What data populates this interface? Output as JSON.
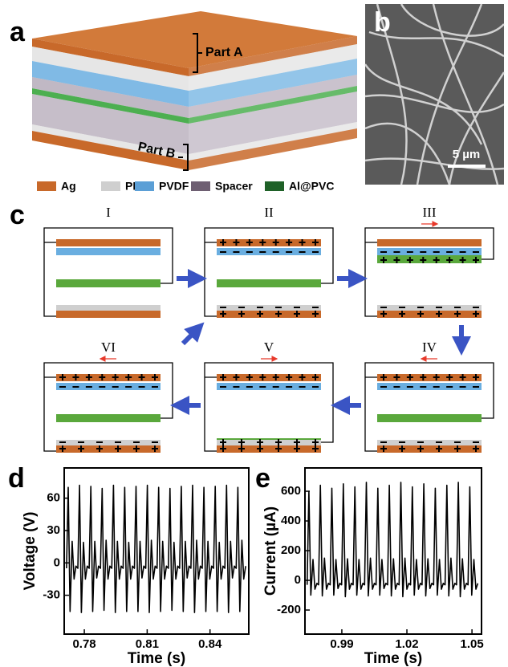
{
  "panel_labels": [
    "a",
    "b",
    "c",
    "d",
    "e"
  ],
  "schematic": {
    "part_a": "Part A",
    "part_b": "Part B",
    "legend": [
      {
        "name": "Ag",
        "color": "#c8692a"
      },
      {
        "name": "PE",
        "color": "#cfcfcf"
      },
      {
        "name": "PVDF",
        "color": "#5b9fd6"
      },
      {
        "name": "Spacer",
        "color": "#6e5f72"
      },
      {
        "name": "Al@PVC",
        "color": "#1f6128"
      }
    ]
  },
  "sem": {
    "scale_bar": "5 µm"
  },
  "stages": [
    "I",
    "II",
    "III",
    "IV",
    "V",
    "VI"
  ],
  "chart_data": [
    {
      "type": "line",
      "ylabel": "Voltage (V)",
      "xlabel": "Time (s)",
      "color": "#000000",
      "xlim": [
        0.7704,
        0.8585
      ],
      "xticks": [
        0.78,
        0.81,
        0.84
      ],
      "ylim": [
        -66,
        88
      ],
      "yticks": [
        -30,
        0,
        30,
        60
      ],
      "x": [
        0.7715,
        0.7723,
        0.7732,
        0.7742,
        0.7751,
        0.776,
        0.7769,
        0.7777,
        0.7786,
        0.7796,
        0.7805,
        0.7814,
        0.7823,
        0.7831,
        0.784,
        0.785,
        0.7859,
        0.7868,
        0.7877,
        0.7885,
        0.7894,
        0.7904,
        0.7913,
        0.7922,
        0.7931,
        0.7939,
        0.7948,
        0.7958,
        0.7967,
        0.7976,
        0.7985,
        0.7993,
        0.8002,
        0.8012,
        0.8021,
        0.803,
        0.8039,
        0.8047,
        0.8056,
        0.8066,
        0.8075,
        0.8084,
        0.8093,
        0.8101,
        0.811,
        0.812,
        0.8129,
        0.8138,
        0.8147,
        0.8155,
        0.8164,
        0.8174,
        0.8183,
        0.8192,
        0.8201,
        0.8209,
        0.8218,
        0.8228,
        0.8237,
        0.8246,
        0.8255,
        0.8263,
        0.8272,
        0.8282,
        0.8291,
        0.83,
        0.8309,
        0.8317,
        0.8326,
        0.8336,
        0.8345,
        0.8354,
        0.8363,
        0.8371,
        0.838,
        0.839,
        0.8399,
        0.8408,
        0.8417,
        0.8425,
        0.8434,
        0.8444,
        0.8453,
        0.8462,
        0.8471,
        0.8479,
        0.8488,
        0.8498,
        0.8507,
        0.8516,
        0.8525,
        0.8533,
        0.8542,
        0.8552,
        0.8561,
        0.857
      ],
      "values": [
        -5,
        70,
        -45,
        20,
        -15,
        -3,
        -5,
        72,
        -46,
        19,
        -15,
        -3,
        -5,
        71,
        -45,
        20,
        -14,
        -3,
        -5,
        69,
        -44,
        21,
        -15,
        -3,
        -5,
        72,
        -46,
        20,
        -15,
        -3,
        -5,
        70,
        -45,
        19,
        -15,
        -3,
        -5,
        71,
        -45,
        20,
        -14,
        -3,
        -5,
        72,
        -46,
        21,
        -15,
        -3,
        -5,
        70,
        -45,
        20,
        -15,
        -3,
        -5,
        69,
        -44,
        19,
        -15,
        -3,
        -5,
        71,
        -45,
        20,
        -14,
        -3,
        -5,
        72,
        -46,
        21,
        -15,
        -3,
        -5,
        70,
        -45,
        20,
        -15,
        -3,
        -5,
        71,
        -45,
        19,
        -15,
        -3,
        -5,
        72,
        -46,
        20,
        -14,
        -3,
        -5,
        70,
        -45,
        21,
        -15,
        -3
      ]
    },
    {
      "type": "line",
      "ylabel": "Current (µA)",
      "xlabel": "Time (s)",
      "color": "#000000",
      "xlim": [
        0.973,
        1.0544
      ],
      "xticks": [
        0.99,
        1.02,
        1.05
      ],
      "ylim": [
        -362,
        757
      ],
      "yticks": [
        -200,
        0,
        200,
        400,
        600
      ],
      "x": [
        0.974,
        0.9748,
        0.9757,
        0.9767,
        0.9776,
        0.9785,
        0.9793,
        0.9801,
        0.981,
        0.982,
        0.9829,
        0.9838,
        0.9846,
        0.9854,
        0.9863,
        0.9873,
        0.9882,
        0.9891,
        0.9899,
        0.9907,
        0.9916,
        0.9926,
        0.9935,
        0.9944,
        0.9952,
        0.996,
        0.9969,
        0.9979,
        0.9988,
        0.9997,
        1.0005,
        1.0013,
        1.0022,
        1.0032,
        1.0041,
        1.005,
        1.0058,
        1.0066,
        1.0075,
        1.0085,
        1.0094,
        1.0103,
        1.0111,
        1.0119,
        1.0128,
        1.0138,
        1.0147,
        1.0156,
        1.0164,
        1.0172,
        1.0181,
        1.0191,
        1.02,
        1.0209,
        1.0217,
        1.0225,
        1.0234,
        1.0244,
        1.0253,
        1.0262,
        1.027,
        1.0278,
        1.0287,
        1.0297,
        1.0306,
        1.0315,
        1.0323,
        1.0331,
        1.034,
        1.035,
        1.0359,
        1.0368,
        1.0376,
        1.0384,
        1.0393,
        1.0403,
        1.0412,
        1.0421,
        1.0429,
        1.0437,
        1.0446,
        1.0456,
        1.0465,
        1.0474,
        1.0482,
        1.049,
        1.0499,
        1.0509,
        1.0518,
        1.0527
      ],
      "values": [
        -30,
        600,
        -100,
        140,
        -60,
        -20,
        -30,
        640,
        -105,
        150,
        -60,
        -20,
        -30,
        620,
        -100,
        140,
        -55,
        -20,
        -30,
        650,
        -110,
        145,
        -60,
        -20,
        -30,
        630,
        -100,
        140,
        -60,
        -20,
        -30,
        660,
        -105,
        150,
        -60,
        -20,
        -30,
        620,
        -100,
        140,
        -55,
        -20,
        -30,
        640,
        -105,
        145,
        -60,
        -20,
        -30,
        660,
        -110,
        150,
        -60,
        -20,
        -30,
        630,
        -100,
        140,
        -60,
        -20,
        -30,
        650,
        -105,
        145,
        -55,
        -20,
        -30,
        620,
        -100,
        140,
        -60,
        -20,
        -30,
        640,
        -105,
        150,
        -60,
        -20,
        -30,
        660,
        -110,
        145,
        -60,
        -20,
        -30,
        630,
        -100,
        140,
        -60,
        -20
      ]
    }
  ]
}
